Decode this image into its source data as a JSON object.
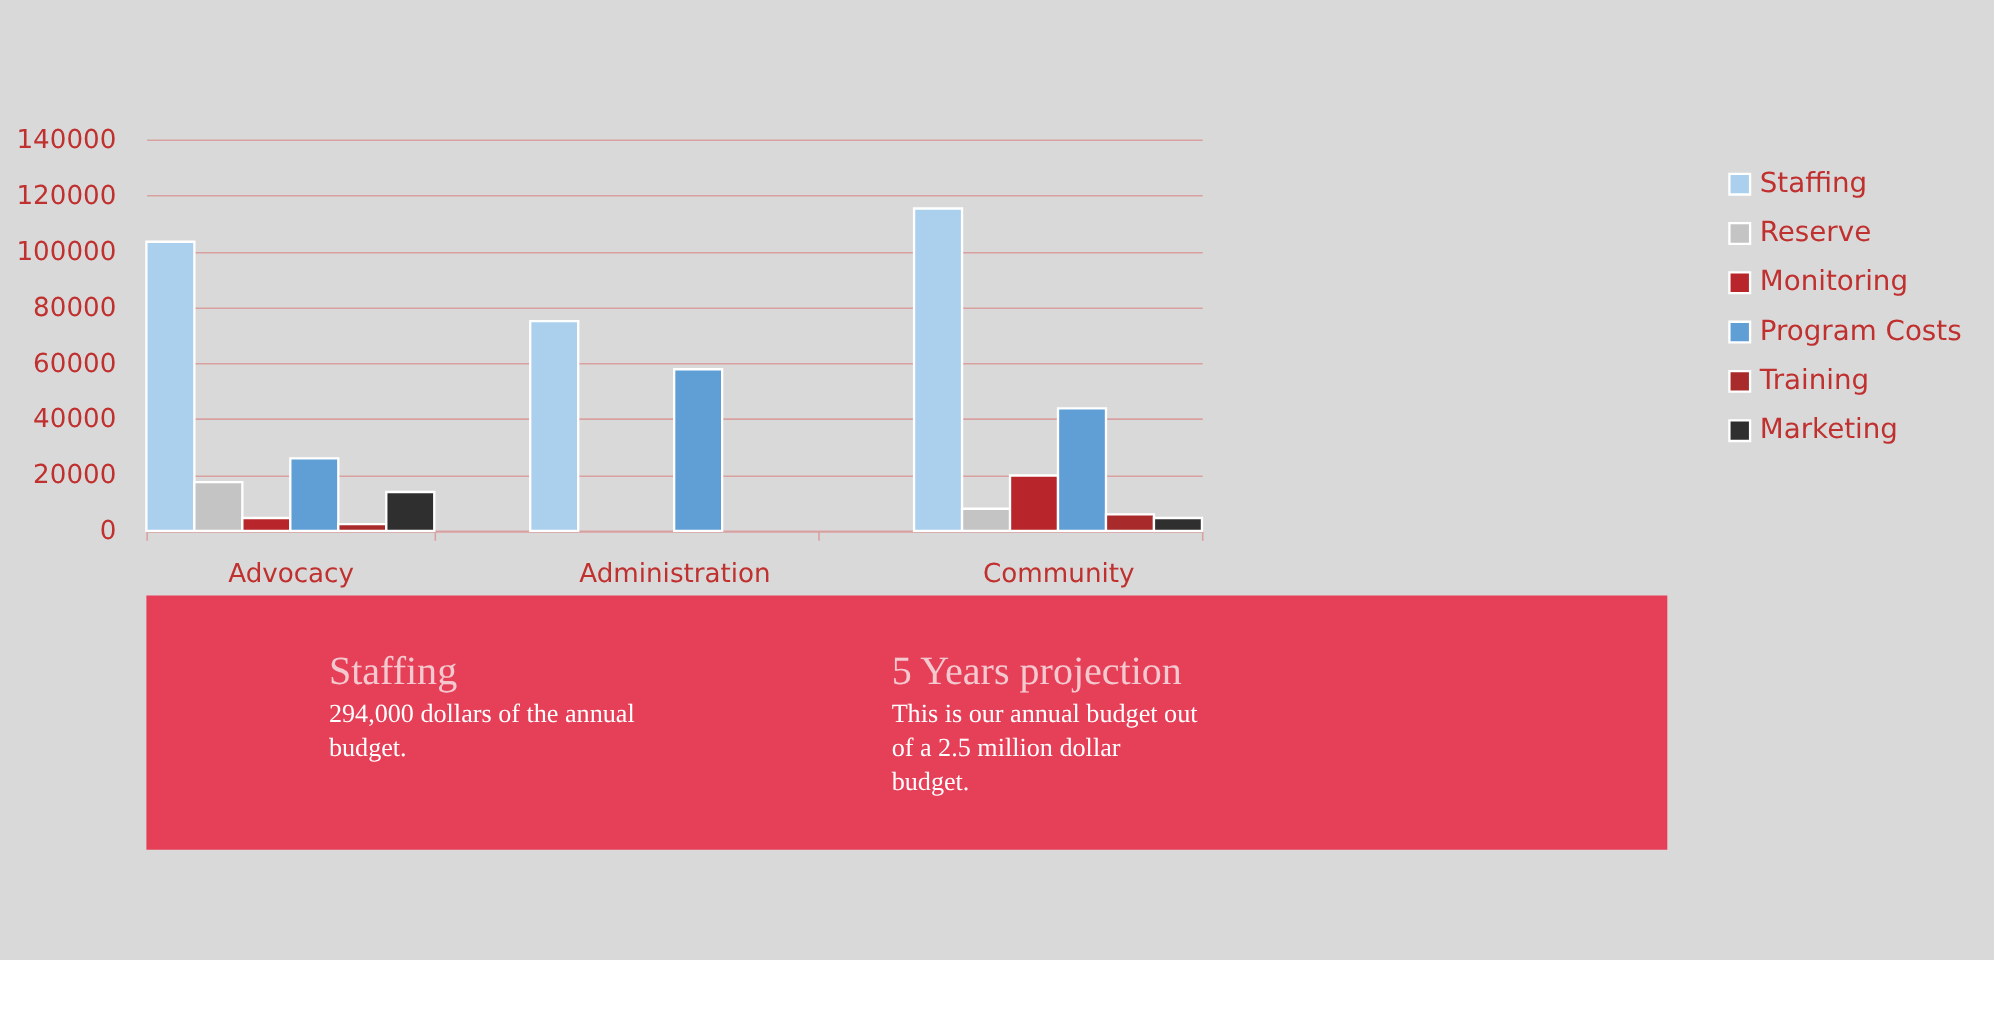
{
  "chart_data": {
    "type": "bar",
    "categories": [
      "Advocacy",
      "Administration",
      "Community"
    ],
    "series": [
      {
        "name": "Staffing",
        "color": "#abd0ee",
        "values": [
          103400,
          75000,
          115300
        ]
      },
      {
        "name": "Reserve",
        "color": "#c4c4c4",
        "values": [
          17400,
          null,
          7900
        ]
      },
      {
        "name": "Monitoring",
        "color": "#b8262b",
        "values": [
          4600,
          null,
          19800
        ]
      },
      {
        "name": "Program Costs",
        "color": "#5f9fd6",
        "values": [
          25900,
          57800,
          43800
        ]
      },
      {
        "name": "Training",
        "color": "#a82a2b",
        "values": [
          2400,
          null,
          5900
        ]
      },
      {
        "name": "Marketing",
        "color": "#2f2f2f",
        "values": [
          13900,
          null,
          4600
        ]
      }
    ],
    "ylim": [
      0,
      140000
    ],
    "yticks": [
      0,
      20000,
      40000,
      60000,
      80000,
      100000,
      120000,
      140000
    ],
    "grid": "y",
    "legend": "right",
    "annotations": [
      "Staffing",
      "294,000 dollars of the annual budget.",
      "5 Years projection",
      "This is our annual budget out of a 2.5 million dollar budget."
    ]
  }
}
